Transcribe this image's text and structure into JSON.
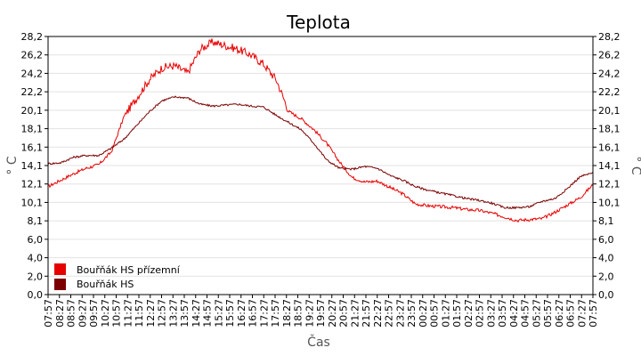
{
  "chart_data": {
    "type": "line",
    "title": "Teplota",
    "xlabel": "Čas",
    "ylabel": "° C",
    "ylim": [
      0,
      28.2
    ],
    "y_ticks": [
      "0,0",
      "2,0",
      "4,0",
      "6,0",
      "8,1",
      "10,1",
      "12,1",
      "14,1",
      "16,1",
      "18,1",
      "20,1",
      "22,2",
      "24,2",
      "26,2",
      "28,2"
    ],
    "x_ticks": [
      "07:57",
      "08:27",
      "08:57",
      "09:27",
      "09:57",
      "10:27",
      "10:57",
      "11:27",
      "11:57",
      "12:27",
      "12:57",
      "13:27",
      "13:57",
      "14:27",
      "14:57",
      "15:27",
      "15:57",
      "16:27",
      "16:57",
      "17:27",
      "17:57",
      "18:27",
      "18:57",
      "19:27",
      "19:57",
      "20:27",
      "20:57",
      "21:27",
      "21:57",
      "22:27",
      "22:57",
      "23:27",
      "23:57",
      "00:27",
      "00:57",
      "01:27",
      "01:57",
      "02:27",
      "02:57",
      "03:27",
      "03:57",
      "04:27",
      "04:57",
      "05:27",
      "05:57",
      "06:27",
      "06:57",
      "07:27",
      "07:57"
    ],
    "grid": true,
    "legend_position": "bottom-left",
    "series": [
      {
        "name": "Bouřňák HS přízemní",
        "color": "#e60000",
        "values": [
          11.8,
          12.5,
          13.2,
          13.8,
          14.2,
          15.6,
          19.5,
          21.5,
          23.5,
          24.8,
          25.0,
          24.2,
          26.8,
          27.6,
          27.2,
          26.8,
          26.2,
          25.2,
          23.5,
          20.0,
          19.2,
          18.0,
          16.5,
          14.5,
          12.8,
          12.3,
          12.4,
          11.7,
          11.0,
          9.9,
          9.7,
          9.6,
          9.5,
          9.3,
          9.2,
          8.9,
          8.5,
          8.1,
          8.2,
          8.3,
          9.0,
          9.8,
          10.6,
          12.0
        ]
      },
      {
        "name": "Bouřňák HS",
        "color": "#7a0000",
        "values": [
          14.3,
          14.4,
          15.0,
          15.2,
          15.2,
          16.0,
          17.0,
          18.5,
          20.0,
          21.2,
          21.6,
          21.5,
          20.8,
          20.6,
          20.7,
          20.8,
          20.6,
          20.5,
          19.6,
          18.8,
          18.0,
          16.5,
          14.7,
          13.8,
          13.7,
          14.0,
          13.8,
          13.0,
          12.5,
          11.8,
          11.4,
          11.1,
          10.8,
          10.5,
          10.3,
          10.0,
          9.5,
          9.5,
          9.6,
          10.2,
          10.5,
          11.6,
          12.9,
          13.3
        ]
      }
    ]
  }
}
